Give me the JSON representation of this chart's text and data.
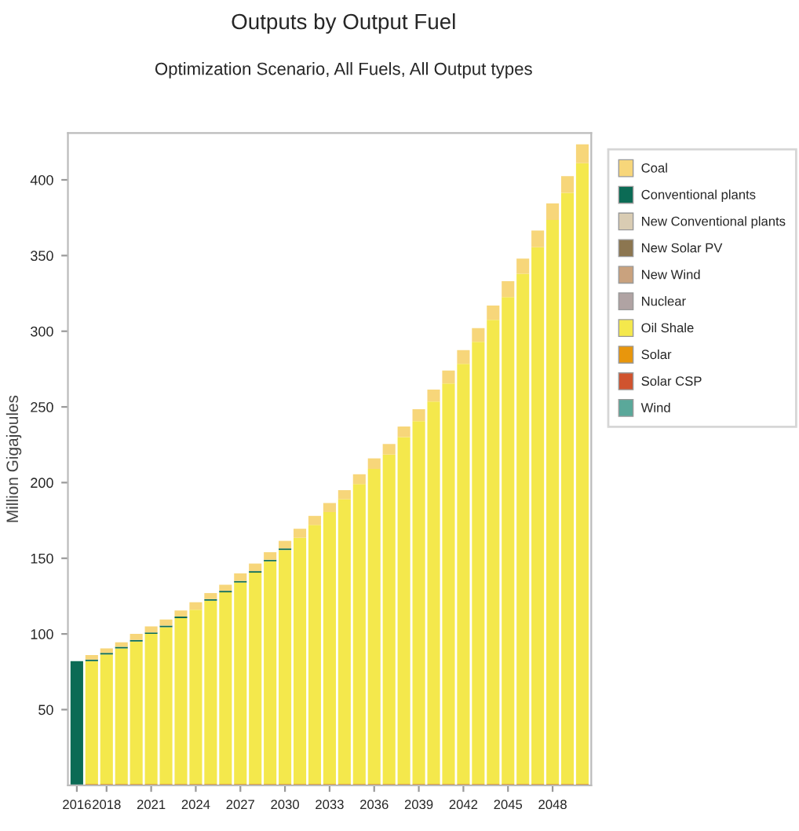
{
  "chart_data": {
    "type": "bar",
    "stacked": true,
    "title": "Outputs by Output Fuel",
    "subtitle": "Optimization Scenario, All Fuels, All Output types",
    "ylabel": "Million Gigajoules",
    "categories": [
      "2016",
      null,
      "2018",
      null,
      null,
      "2021",
      null,
      null,
      "2024",
      null,
      null,
      "2027",
      null,
      null,
      "2030",
      null,
      null,
      "2033",
      null,
      null,
      "2036",
      null,
      null,
      "2039",
      null,
      null,
      "2042",
      null,
      null,
      "2045",
      null,
      null,
      "2048",
      null,
      null
    ],
    "series": [
      {
        "name": "Solar",
        "color": "#e8960c",
        "values": [
          0,
          1,
          1,
          1,
          1,
          1,
          1,
          1,
          1,
          1,
          1,
          1,
          1,
          1,
          1,
          1,
          1,
          1,
          1,
          1,
          1,
          1,
          1,
          1,
          1,
          1,
          1,
          1,
          1,
          1,
          1,
          1,
          1,
          1,
          1
        ]
      },
      {
        "name": "Oil Shale",
        "color": "#f4e84c",
        "values": [
          0,
          81,
          85.5,
          89.5,
          94,
          99,
          103.5,
          109.5,
          115,
          121,
          126.5,
          133,
          139.5,
          147,
          154.5,
          162.5,
          171,
          179.5,
          188,
          198,
          208,
          217.5,
          229,
          239.5,
          252.5,
          264.5,
          277.5,
          292,
          306.5,
          321.5,
          337,
          354.5,
          372.5,
          390.5,
          410
        ]
      },
      {
        "name": "Conventional plants",
        "color": "#0b6b55",
        "values": [
          82,
          1,
          1,
          1,
          1,
          1,
          1,
          1,
          0,
          1,
          1,
          1,
          1,
          1,
          1,
          0,
          0,
          0,
          0,
          0,
          0,
          0,
          0,
          0,
          0,
          0,
          0,
          0,
          0,
          0,
          0,
          0,
          0,
          0,
          0
        ]
      },
      {
        "name": "Coal",
        "color": "#f7d67a",
        "values": [
          0,
          3,
          3,
          3,
          4,
          4,
          4,
          4,
          5,
          4,
          4,
          5,
          5,
          5,
          5,
          6,
          6,
          6,
          6,
          6.5,
          7,
          7,
          7,
          8,
          8,
          8.5,
          9,
          9,
          9.5,
          10.5,
          10,
          11,
          11,
          11,
          12.5
        ]
      },
      {
        "name": "New Conventional plants",
        "color": "#d9ccb3",
        "values": [
          0,
          0,
          0,
          0,
          0,
          0,
          0,
          0,
          0,
          0,
          0,
          0,
          0,
          0,
          0,
          0,
          0,
          0,
          0,
          0,
          0,
          0,
          0,
          0,
          0,
          0,
          0,
          0,
          0,
          0,
          0,
          0,
          0,
          0,
          0
        ]
      },
      {
        "name": "New Solar PV",
        "color": "#8c7650",
        "values": [
          0,
          0,
          0,
          0,
          0,
          0,
          0,
          0,
          0,
          0,
          0,
          0,
          0,
          0,
          0,
          0,
          0,
          0,
          0,
          0,
          0,
          0,
          0,
          0,
          0,
          0,
          0,
          0,
          0,
          0,
          0,
          0,
          0,
          0,
          0
        ]
      },
      {
        "name": "New Wind",
        "color": "#c9a27e",
        "values": [
          0,
          0,
          0,
          0,
          0,
          0,
          0,
          0,
          0,
          0,
          0,
          0,
          0,
          0,
          0,
          0,
          0,
          0,
          0,
          0,
          0,
          0,
          0,
          0,
          0,
          0,
          0,
          0,
          0,
          0,
          0,
          0,
          0,
          0,
          0
        ]
      },
      {
        "name": "Nuclear",
        "color": "#b0a3a3",
        "values": [
          0,
          0,
          0,
          0,
          0,
          0,
          0,
          0,
          0,
          0,
          0,
          0,
          0,
          0,
          0,
          0,
          0,
          0,
          0,
          0,
          0,
          0,
          0,
          0,
          0,
          0,
          0,
          0,
          0,
          0,
          0,
          0,
          0,
          0,
          0
        ]
      },
      {
        "name": "Solar CSP",
        "color": "#d0532e",
        "values": [
          0,
          0,
          0,
          0,
          0,
          0,
          0,
          0,
          0,
          0,
          0,
          0,
          0,
          0,
          0,
          0,
          0,
          0,
          0,
          0,
          0,
          0,
          0,
          0,
          0,
          0,
          0,
          0,
          0,
          0,
          0,
          0,
          0,
          0,
          0
        ]
      },
      {
        "name": "Wind",
        "color": "#5aa89a",
        "values": [
          0,
          0,
          0,
          0,
          0,
          0,
          0,
          0,
          0,
          0,
          0,
          0,
          0,
          0,
          0,
          0,
          0,
          0,
          0,
          0,
          0,
          0,
          0,
          0,
          0,
          0,
          0,
          0,
          0,
          0,
          0,
          0,
          0,
          0,
          0
        ]
      }
    ],
    "ylim": [
      0,
      431
    ],
    "yticks": [
      50,
      100,
      150,
      200,
      250,
      300,
      350,
      400
    ],
    "grid": false,
    "legend": "right"
  }
}
